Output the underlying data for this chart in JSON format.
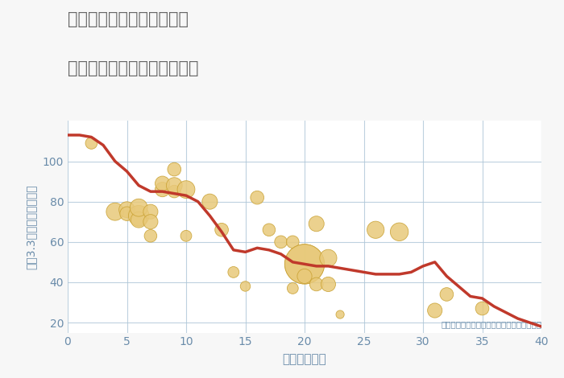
{
  "title_line1": "愛知県稲沢市平和町平池の",
  "title_line2": "築年数別中古マンション価格",
  "xlabel": "築年数（年）",
  "ylabel": "坪（3.3㎡）単価（万円）",
  "annotation": "円の大きさは、取引のあった物件面積を示す",
  "bg_color": "#f7f7f7",
  "plot_bg_color": "#ffffff",
  "line_color": "#c0392b",
  "scatter_color": "#e8c97a",
  "scatter_edge_color": "#c8a030",
  "grid_color": "#aec6d8",
  "title_color": "#666666",
  "axis_color": "#6a8caa",
  "annotation_color": "#6a8caa",
  "line_x": [
    0,
    1,
    2,
    3,
    4,
    5,
    6,
    7,
    8,
    9,
    10,
    11,
    12,
    13,
    14,
    15,
    16,
    17,
    18,
    19,
    20,
    21,
    22,
    23,
    24,
    25,
    26,
    27,
    28,
    29,
    30,
    31,
    32,
    33,
    34,
    35,
    36,
    37,
    38,
    39,
    40
  ],
  "line_y": [
    113,
    113,
    112,
    108,
    100,
    95,
    88,
    85,
    85,
    84,
    83,
    80,
    73,
    65,
    56,
    55,
    57,
    56,
    54,
    50,
    49,
    48,
    48,
    47,
    46,
    45,
    44,
    44,
    44,
    45,
    48,
    50,
    43,
    38,
    33,
    32,
    28,
    25,
    22,
    20,
    18
  ],
  "scatter_x": [
    2,
    4,
    5,
    5,
    6,
    6,
    6,
    7,
    7,
    7,
    8,
    8,
    9,
    9,
    9,
    10,
    10,
    12,
    13,
    14,
    15,
    16,
    17,
    18,
    19,
    19,
    20,
    20,
    20,
    21,
    21,
    22,
    22,
    23,
    26,
    28,
    31,
    32,
    35
  ],
  "scatter_y": [
    109,
    75,
    76,
    74,
    73,
    71,
    77,
    75,
    70,
    63,
    86,
    89,
    85,
    88,
    96,
    86,
    63,
    80,
    66,
    45,
    38,
    82,
    66,
    60,
    60,
    37,
    49,
    49,
    43,
    69,
    39,
    39,
    52,
    24,
    66,
    65,
    26,
    34,
    27
  ],
  "scatter_size": [
    25,
    55,
    45,
    35,
    75,
    45,
    55,
    38,
    38,
    28,
    38,
    38,
    28,
    45,
    32,
    55,
    22,
    42,
    32,
    22,
    18,
    32,
    28,
    28,
    28,
    22,
    280,
    280,
    38,
    42,
    32,
    38,
    52,
    12,
    52,
    58,
    38,
    32,
    32
  ],
  "xlim": [
    0,
    40
  ],
  "ylim": [
    15,
    120
  ],
  "xticks": [
    0,
    5,
    10,
    15,
    20,
    25,
    30,
    35,
    40
  ],
  "yticks": [
    20,
    40,
    60,
    80,
    100
  ]
}
